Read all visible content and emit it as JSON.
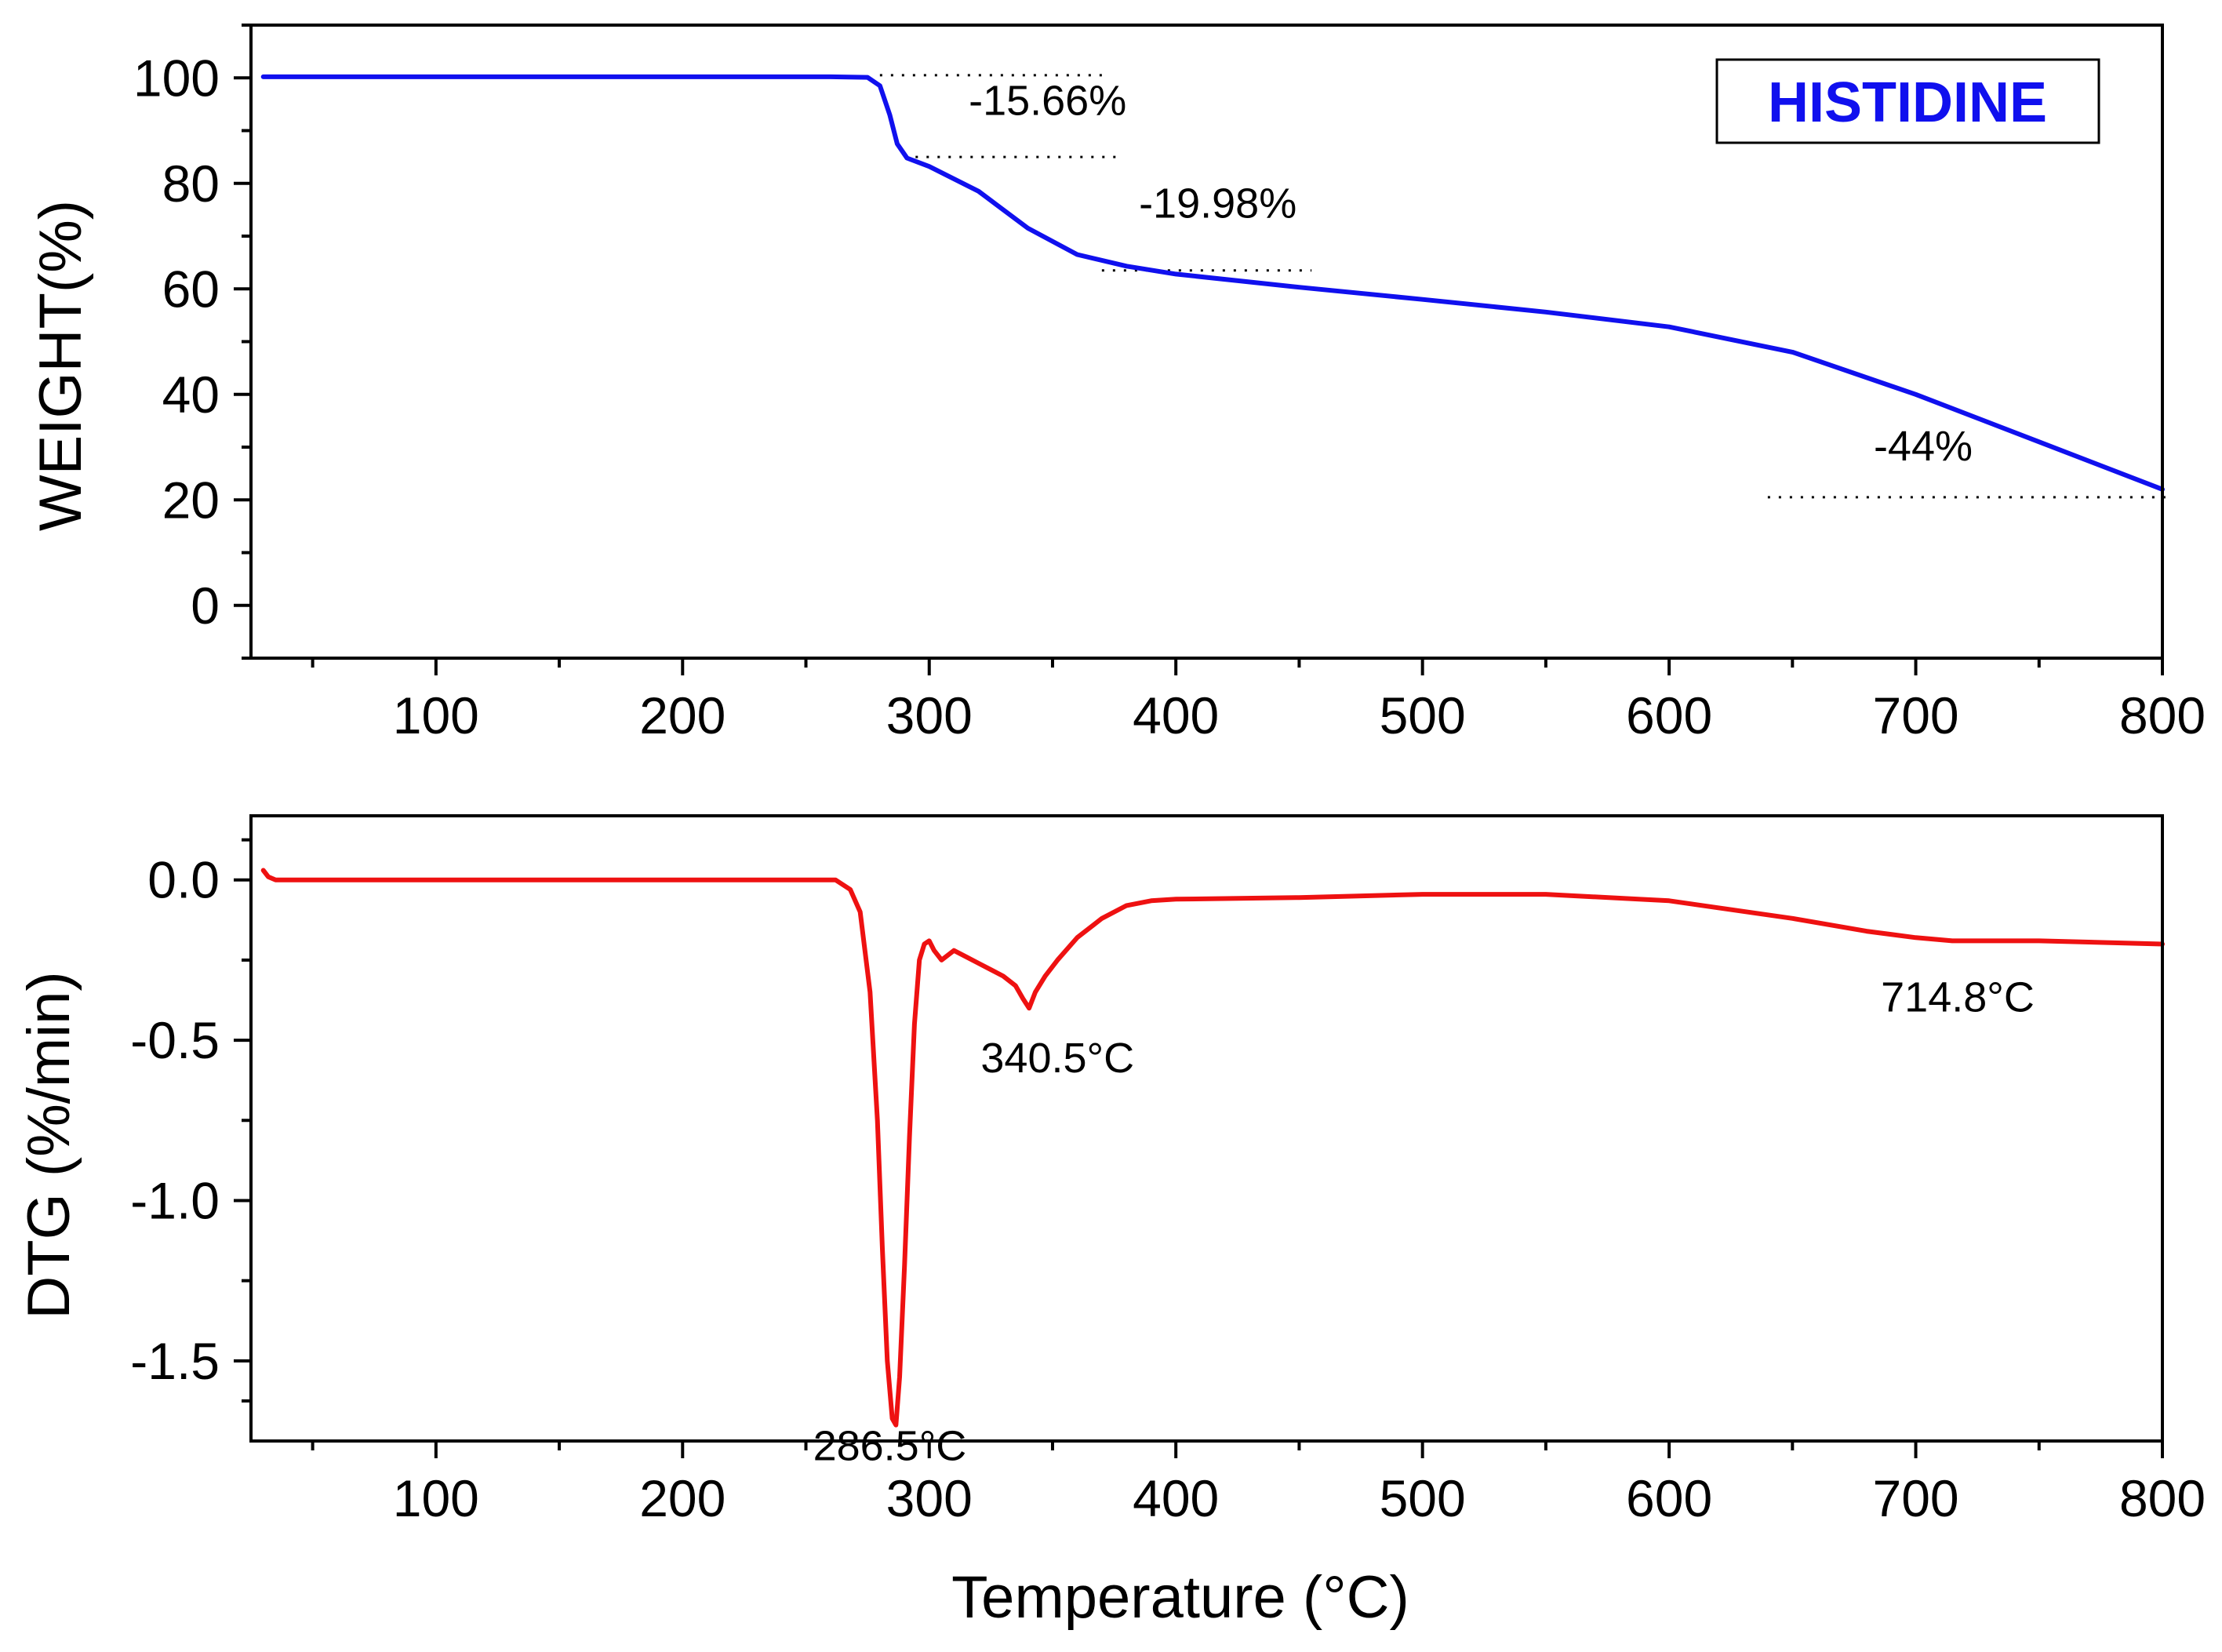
{
  "colors": {
    "tga": "#1010ee",
    "dtg": "#ee1111",
    "legend_text": "#1010ee"
  },
  "chart_data": [
    {
      "type": "line",
      "name": "tga",
      "legend": "HISTIDINE",
      "xlabel": "",
      "ylabel": "WEIGHT(%)",
      "xlim": [
        25,
        800
      ],
      "ylim": [
        -10,
        110
      ],
      "grid": false,
      "x_ticks": [
        100,
        200,
        300,
        400,
        500,
        600,
        700,
        800
      ],
      "y_ticks": [
        0,
        20,
        40,
        60,
        80,
        100
      ],
      "x_minor_ticks": [
        50,
        150,
        250,
        350,
        450,
        550,
        650,
        750
      ],
      "y_minor_ticks": [
        -10,
        10,
        30,
        50,
        70,
        90,
        110
      ],
      "x_tick_labels": [
        "100",
        "200",
        "300",
        "400",
        "500",
        "600",
        "700",
        "800"
      ],
      "y_tick_labels": [
        "0",
        "20",
        "40",
        "60",
        "80",
        "100"
      ],
      "series": [
        {
          "name": "HISTIDINE",
          "x": [
            30,
            100,
            200,
            260,
            275,
            280,
            284,
            287,
            291,
            300,
            320,
            340,
            360,
            380,
            400,
            450,
            500,
            550,
            600,
            650,
            700,
            750,
            800
          ],
          "y": [
            100.2,
            100.2,
            100.2,
            100.2,
            100.1,
            98.5,
            93,
            87.5,
            84.8,
            83.2,
            78.5,
            71.5,
            66.5,
            64.3,
            62.8,
            60.3,
            58,
            55.6,
            52.8,
            48,
            40,
            31,
            22
          ]
        }
      ],
      "guides": [
        {
          "y": 100.5,
          "x1": 280,
          "x2": 370
        },
        {
          "y": 85,
          "x1": 290,
          "x2": 378
        },
        {
          "y": 63.5,
          "x1": 370,
          "x2": 455
        },
        {
          "y": 20.5,
          "x1": 640,
          "x2": 803
        }
      ],
      "annotations": [
        {
          "text": "-15.66%",
          "x": 348,
          "y": 93
        },
        {
          "text": "-19.98%",
          "x": 417,
          "y": 73.5
        },
        {
          "text": "-44%",
          "x": 703,
          "y": 27.5
        }
      ]
    },
    {
      "type": "line",
      "name": "dtg",
      "xlabel": "Temperature (°C)",
      "ylabel": "DTG (%/min)",
      "xlim": [
        25,
        800
      ],
      "ylim": [
        -1.75,
        0.2
      ],
      "grid": false,
      "x_ticks": [
        100,
        200,
        300,
        400,
        500,
        600,
        700,
        800
      ],
      "y_ticks": [
        0.0,
        -0.5,
        -1.0,
        -1.5
      ],
      "x_minor_ticks": [
        50,
        150,
        250,
        350,
        450,
        550,
        650,
        750
      ],
      "y_minor_ticks": [
        0.125,
        -0.25,
        -0.75,
        -1.25,
        -1.625
      ],
      "x_tick_labels": [
        "100",
        "200",
        "300",
        "400",
        "500",
        "600",
        "700",
        "800"
      ],
      "y_tick_labels": [
        "0.0",
        "-0.5",
        "-1.0",
        "-1.5"
      ],
      "series": [
        {
          "name": "DTG",
          "x": [
            30,
            32,
            35,
            40,
            100,
            200,
            250,
            262,
            268,
            272,
            276,
            279,
            281,
            283,
            285,
            286.5,
            288,
            290,
            292,
            294,
            296,
            298,
            300,
            302,
            305,
            310,
            315,
            320,
            325,
            330,
            335,
            338,
            340.5,
            343,
            347,
            352,
            360,
            370,
            380,
            390,
            400,
            450,
            500,
            550,
            600,
            650,
            680,
            700,
            714.8,
            730,
            750,
            800
          ],
          "y": [
            0.03,
            0.01,
            0.0,
            0.0,
            0.0,
            0.0,
            0.0,
            0.0,
            -0.03,
            -0.1,
            -0.35,
            -0.75,
            -1.15,
            -1.5,
            -1.68,
            -1.7,
            -1.55,
            -1.2,
            -0.8,
            -0.45,
            -0.25,
            -0.2,
            -0.19,
            -0.22,
            -0.25,
            -0.22,
            -0.24,
            -0.26,
            -0.28,
            -0.3,
            -0.33,
            -0.37,
            -0.4,
            -0.35,
            -0.3,
            -0.25,
            -0.18,
            -0.12,
            -0.08,
            -0.065,
            -0.06,
            -0.055,
            -0.045,
            -0.045,
            -0.065,
            -0.12,
            -0.16,
            -0.18,
            -0.19,
            -0.19,
            -0.19,
            -0.2
          ]
        }
      ],
      "annotations": [
        {
          "text": "286.5°C",
          "x": 284,
          "y": -1.81
        },
        {
          "text": "340.5°C",
          "x": 352,
          "y": -0.6
        },
        {
          "text": "714.8°C",
          "x": 717,
          "y": -0.41
        }
      ]
    }
  ]
}
